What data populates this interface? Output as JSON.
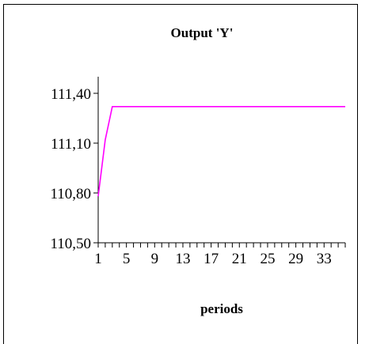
{
  "chart_data": {
    "type": "line",
    "title": "Output 'Y'",
    "xlabel": "periods",
    "ylabel": "",
    "ylim": [
      110.5,
      111.5
    ],
    "yticks": [
      "110,50",
      "110,80",
      "111,10",
      "111,40"
    ],
    "ytick_values": [
      110.5,
      110.8,
      111.1,
      111.4
    ],
    "xticks": [
      "1",
      "5",
      "9",
      "13",
      "17",
      "21",
      "25",
      "29",
      "33"
    ],
    "xtick_values": [
      1,
      5,
      9,
      13,
      17,
      21,
      25,
      29,
      33
    ],
    "x_categories": 36,
    "grid": false,
    "legend": "none",
    "series": [
      {
        "color": "#ff00ff",
        "x": [
          1,
          2,
          3,
          4,
          5,
          6,
          7,
          8,
          9,
          10,
          11,
          12,
          13,
          14,
          15,
          16,
          17,
          18,
          19,
          20,
          21,
          22,
          23,
          24,
          25,
          26,
          27,
          28,
          29,
          30,
          31,
          32,
          33,
          34,
          35,
          36
        ],
        "values": [
          110.78,
          111.12,
          111.32,
          111.32,
          111.32,
          111.32,
          111.32,
          111.32,
          111.32,
          111.32,
          111.32,
          111.32,
          111.32,
          111.32,
          111.32,
          111.32,
          111.32,
          111.32,
          111.32,
          111.32,
          111.32,
          111.32,
          111.32,
          111.32,
          111.32,
          111.32,
          111.32,
          111.32,
          111.32,
          111.32,
          111.32,
          111.32,
          111.32,
          111.32,
          111.32,
          111.32
        ]
      }
    ]
  }
}
